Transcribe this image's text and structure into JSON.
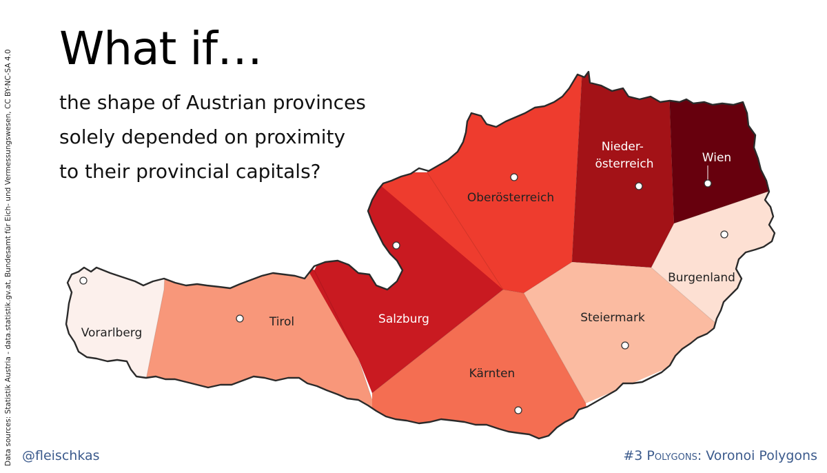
{
  "title": "What if…",
  "subtitle_lines": [
    "the shape of Austrian provinces",
    "solely depended on proximity",
    "to their provincial capitals?"
  ],
  "sources": "Data sources: Statistik Austria - data.statistik.gv.at, Bundesamt für Eich- und Vermessungswesen, CC BY-NC-SA 4.0",
  "handle": "@fleischkas",
  "tagline": {
    "prefix": "#3 ",
    "smallcaps": "Polygons",
    "suffix": ": Voronoi Polygons"
  },
  "colors": {
    "border": "#2a2a2a",
    "capital_dot": "#ffffff",
    "footer_text": "#3b5a8c"
  },
  "regions": [
    {
      "name": "Vorarlberg",
      "label": "Vorarlberg",
      "fill": "#fcf0ec",
      "label_color": "#222222"
    },
    {
      "name": "Tirol",
      "label": "Tirol",
      "fill": "#f8977a",
      "label_color": "#222222"
    },
    {
      "name": "Salzburg",
      "label": "Salzburg",
      "fill": "#c91a21",
      "label_color": "#ffffff"
    },
    {
      "name": "Kärnten",
      "label": "Kärnten",
      "fill": "#f46e52",
      "label_color": "#222222"
    },
    {
      "name": "Oberösterreich",
      "label": "Oberösterreich",
      "fill": "#ee3c2e",
      "label_color": "#222222"
    },
    {
      "name": "Niederösterreich",
      "label": "Nieder-|österreich",
      "fill": "#a31217",
      "label_color": "#ffffff"
    },
    {
      "name": "Wien",
      "label": "Wien",
      "fill": "#67000d",
      "label_color": "#ffffff"
    },
    {
      "name": "Steiermark",
      "label": "Steiermark",
      "fill": "#fbbba1",
      "label_color": "#222222"
    },
    {
      "name": "Burgenland",
      "label": "Burgenland",
      "fill": "#fde0d3",
      "label_color": "#222222"
    }
  ]
}
